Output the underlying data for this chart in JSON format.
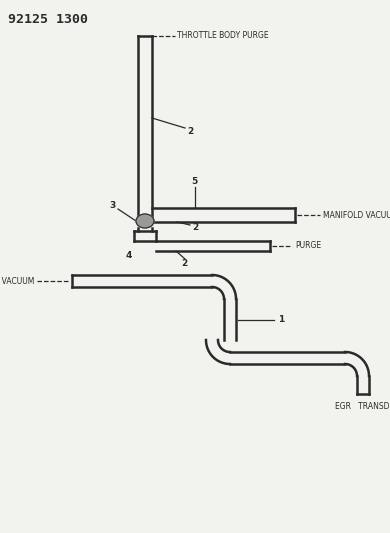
{
  "title_text": "92125 1300",
  "bg_color": "#f2f2ee",
  "line_color": "#2a2a2a",
  "throttle_body_purge_label": "THROTTLE BODY PURGE",
  "manifold_vacuum_label_top": "MANIFOLD VACUUM",
  "purge_label": "PURGE",
  "manifold_vacuum_label_bot": "MANIFOLD VACUUM",
  "egr_transducer_label": "EGR   TRANSDUCER",
  "lw_tube": 1.8,
  "lw_thin": 0.9,
  "fontsize_label": 5.5,
  "fontsize_num": 6.5
}
